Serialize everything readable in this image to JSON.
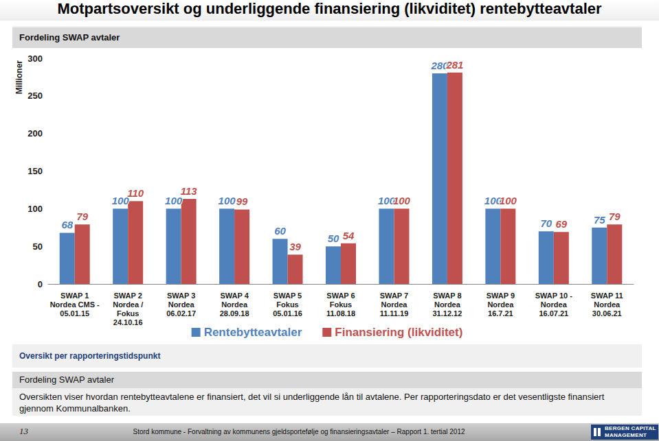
{
  "page": {
    "title": "Motpartsoversikt og underliggende finansiering (likviditet) rentebytteavtaler",
    "caption": "Oversikt per rapporteringstidspunkt",
    "section_header": "Fordeling SWAP avtaler",
    "section_text": "Oversikten viser hvordan rentebytteavtalene er finansiert, det vil si underliggende lån til avtalene. Per rapporteringsdato er det vesentligste finansiert gjennom Kommunalbanken.",
    "footer": {
      "page": "13",
      "text": "Stord kommune - Forvaltning av kommunens gjeldsportefølje og finansieringsavtaler – Rapport 1. tertial 2012",
      "logo": "BERGEN CAPITAL\nMANAGEMENT"
    }
  },
  "chart_data": {
    "type": "bar",
    "title": "Fordeling SWAP avtaler",
    "ylabel": "Millioner",
    "categories": [
      "SWAP 1\nNordea CMS -\n05.01.15",
      "SWAP 2\nNordea /\nFokus\n24.10.16",
      "SWAP 3\nNordea\n06.02.17",
      "SWAP 4\nNordea\n28.09.18",
      "SWAP 5\nFokus\n05.01.16",
      "SWAP 6\nFokus\n11.08.18",
      "SWAP 7\nNordea\n11.11.19",
      "SWAP 8\nNordea\n31.12.12",
      "SWAP 9\nNordea\n16.7.21",
      "SWAP 10 -\nNordea\n16.07.21",
      "SWAP 11\nNordea\n30.06.21"
    ],
    "series": [
      {
        "name": "Rentebytteavtaler",
        "color": "#4f81bd",
        "values": [
          68,
          100,
          100,
          100,
          60,
          50,
          100,
          280,
          100,
          70,
          75
        ]
      },
      {
        "name": "Finansiering (likviditet)",
        "color": "#c0504d",
        "values": [
          79,
          110,
          113,
          99,
          39,
          54,
          100,
          281,
          100,
          69,
          79
        ]
      }
    ],
    "ylim": [
      0,
      300
    ],
    "yticks": [
      0,
      50,
      100,
      150,
      200,
      250,
      300
    ],
    "grid": false,
    "legend": "bottom",
    "data_labels": true
  }
}
